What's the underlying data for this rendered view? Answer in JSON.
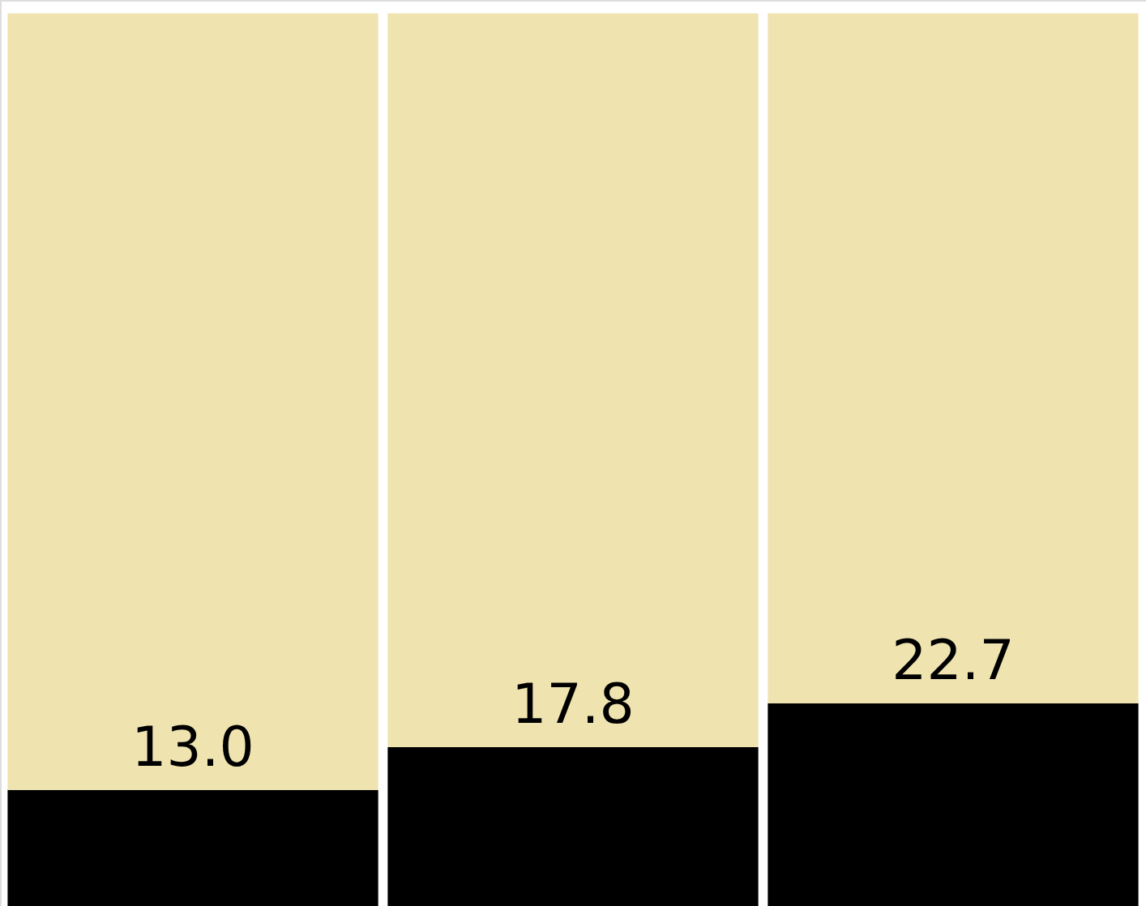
{
  "chart_data": {
    "type": "bar",
    "stacked": true,
    "categories": [
      null,
      null,
      null
    ],
    "ylim": [
      0,
      101.5
    ],
    "tick_labels": false,
    "series": [
      {
        "color": "#000000",
        "values": [
          13.0,
          17.8,
          22.7
        ],
        "value_labels": [
          "13.0",
          "17.8",
          "22.7"
        ]
      },
      {
        "color": "#efe3b0",
        "values": [
          87.0,
          82.2,
          77.3
        ]
      }
    ]
  }
}
